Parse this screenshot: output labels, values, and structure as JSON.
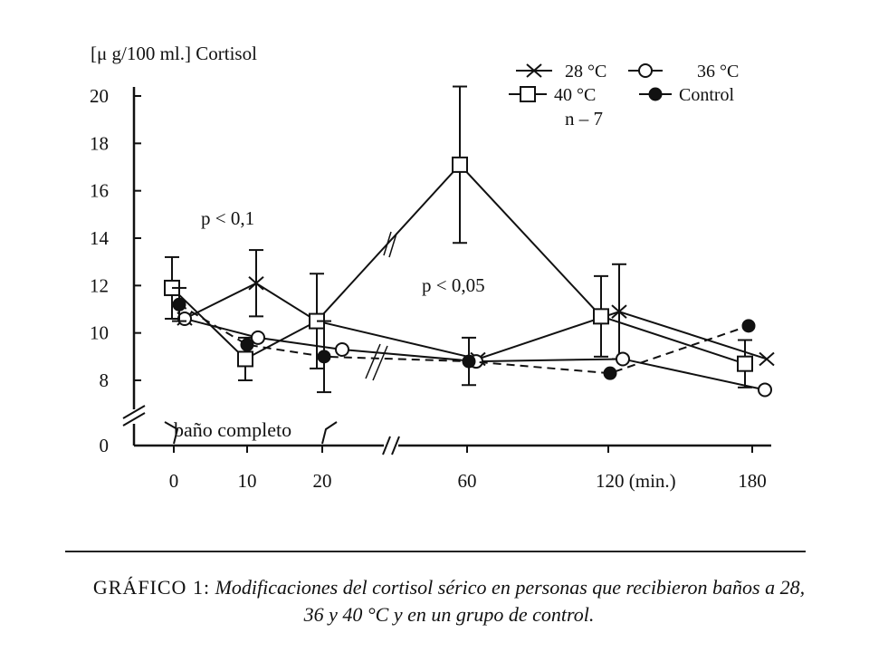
{
  "chart_data": {
    "type": "line",
    "ylabel": "[μ g/100 ml.] Cortisol",
    "x_ticks": [
      "0",
      "10",
      "20",
      "60",
      "120 (min.)",
      "180"
    ],
    "x": [
      0,
      10,
      20,
      60,
      120,
      180
    ],
    "y_ticks": [
      "0",
      "8",
      "10",
      "12",
      "14",
      "16",
      "18",
      "20"
    ],
    "ylim": [
      8,
      20
    ],
    "y_break": true,
    "x_break_between": [
      20,
      60
    ],
    "legend_position": "top-right",
    "series": [
      {
        "name": "28 °C",
        "marker": "x",
        "line": "solid",
        "values": [
          10.6,
          12.1,
          10.5,
          8.9,
          10.9,
          8.9
        ],
        "err": [
          null,
          1.4,
          null,
          null,
          2.0,
          null
        ]
      },
      {
        "name": "36 °C",
        "marker": "open-circle",
        "line": "solid",
        "values": [
          10.6,
          9.8,
          9.3,
          8.8,
          8.9,
          7.6
        ],
        "err": [
          null,
          null,
          null,
          null,
          null,
          null
        ]
      },
      {
        "name": "40 °C",
        "marker": "open-square",
        "line": "solid",
        "values": [
          11.9,
          8.9,
          10.5,
          17.1,
          10.7,
          8.7
        ],
        "err": [
          1.3,
          0.9,
          2.0,
          3.3,
          1.7,
          1.0
        ]
      },
      {
        "name": "Control",
        "marker": "filled-circle",
        "line": "dashed",
        "values": [
          11.2,
          9.5,
          9.0,
          8.8,
          8.3,
          10.3
        ],
        "err": [
          0.7,
          null,
          1.5,
          1.0,
          null,
          null
        ]
      }
    ],
    "annotations": [
      "p < 0,1",
      "p < 0,05",
      "n – 7",
      "baño completo"
    ]
  },
  "caption": {
    "lead": "GRÁFICO 1:",
    "text": "Modificaciones del cortisol sérico en personas que recibieron baños a 28, 36 y 40 °C y en un grupo de control."
  }
}
